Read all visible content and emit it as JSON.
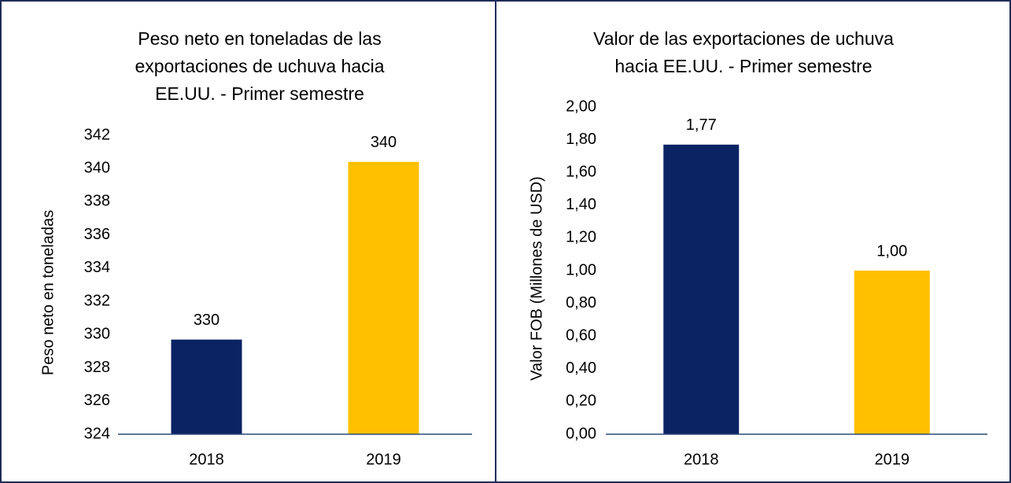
{
  "chart_data": [
    {
      "type": "bar",
      "title": "Peso neto en toneladas de las exportaciones de uchuva hacia EE.UU. - Primer semestre",
      "y_label": "Peso neto en toneladas",
      "categories": [
        "2018",
        "2019"
      ],
      "values": [
        329.7,
        340.4
      ],
      "value_labels": [
        "330",
        "340"
      ],
      "colors": [
        "#0b2363",
        "#ffc000"
      ],
      "ylim": [
        324,
        342
      ],
      "yticks": [
        324,
        326,
        328,
        330,
        332,
        334,
        336,
        338,
        340,
        342
      ]
    },
    {
      "type": "bar",
      "title": "Valor de las exportaciones de uchuva hacia EE.UU. - Primer semestre",
      "y_label": "Valor FOB (Millones de USD)",
      "categories": [
        "2018",
        "2019"
      ],
      "values": [
        1.77,
        1.0
      ],
      "value_labels": [
        "1,77",
        "1,00"
      ],
      "colors": [
        "#0b2363",
        "#ffc000"
      ],
      "ylim": [
        0,
        2
      ],
      "yticks": [
        {
          "value": 0,
          "label": "0,00"
        },
        {
          "value": 0.2,
          "label": "0,20"
        },
        {
          "value": 0.4,
          "label": "0,40"
        },
        {
          "value": 0.6,
          "label": "0,60"
        },
        {
          "value": 0.8,
          "label": "0,80"
        },
        {
          "value": 1.0,
          "label": "1,00"
        },
        {
          "value": 1.2,
          "label": "1,20"
        },
        {
          "value": 1.4,
          "label": "1,40"
        },
        {
          "value": 1.6,
          "label": "1,60"
        },
        {
          "value": 1.8,
          "label": "1,80"
        },
        {
          "value": 2.0,
          "label": "2,00"
        }
      ]
    }
  ]
}
